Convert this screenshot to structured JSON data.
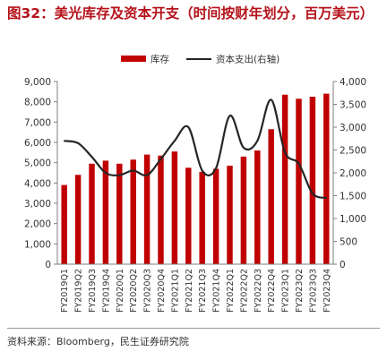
{
  "title": "图32：美光库存及资本开支（时间按财年划分，百万美元）",
  "source": "资料来源：Bloomberg，民生证券研究院",
  "colors": {
    "bar": "#c00000",
    "line": "#262626",
    "title": "#b5121b"
  },
  "chart_data": {
    "type": "bar",
    "title": "图32：美光库存及资本开支（时间按财年划分，百万美元）",
    "categories": [
      "FY2019Q1",
      "FY2019Q2",
      "FY2019Q3",
      "FY2019Q4",
      "FY2020Q1",
      "FY2020Q2",
      "FY2020Q3",
      "FY2020Q4",
      "FY2021Q1",
      "FY2021Q2",
      "FY2021Q3",
      "FY2021Q4",
      "FY2022Q1",
      "FY2022Q2",
      "FY2022Q3",
      "FY2022Q4",
      "FY2023Q1",
      "FY2023Q2",
      "FY2023Q3",
      "FY2023Q4"
    ],
    "series": [
      {
        "name": "库存",
        "type": "bar",
        "axis": "left",
        "values": [
          3900,
          4400,
          4950,
          5100,
          4950,
          5150,
          5400,
          5350,
          5550,
          4750,
          4550,
          4700,
          4850,
          5300,
          5600,
          6650,
          8350,
          8150,
          8250,
          8400
        ]
      },
      {
        "name": "资本支出(右轴)",
        "type": "line",
        "axis": "right",
        "values": [
          2700,
          2650,
          2350,
          2000,
          1950,
          2050,
          1950,
          2300,
          2700,
          3000,
          2050,
          2100,
          3250,
          2550,
          2700,
          3600,
          2450,
          2200,
          1550,
          1450
        ]
      }
    ],
    "y_left": {
      "min": 0,
      "max": 9000,
      "step": 1000,
      "ticks": [
        "0",
        "1,000",
        "2,000",
        "3,000",
        "4,000",
        "5,000",
        "6,000",
        "7,000",
        "8,000",
        "9,000"
      ]
    },
    "y_right": {
      "min": 0,
      "max": 4000,
      "step": 500,
      "ticks": [
        "0",
        "500",
        "1,000",
        "1,500",
        "2,000",
        "2,500",
        "3,000",
        "3,500",
        "4,000"
      ]
    },
    "legend_position": "top-center",
    "grid": false
  }
}
